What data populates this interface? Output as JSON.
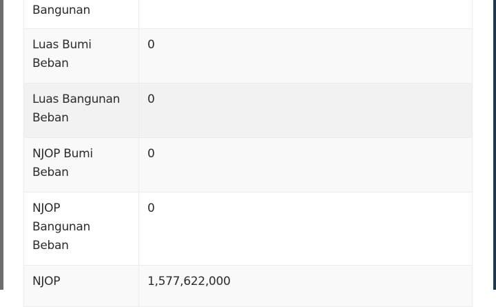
{
  "rows": [
    {
      "label": "Bangunan",
      "value": ""
    },
    {
      "label": "Luas Bumi Beban",
      "value": "0"
    },
    {
      "label": "Luas Bangunan Beban",
      "value": "0"
    },
    {
      "label": "NJOP Bumi Beban",
      "value": "0"
    },
    {
      "label": "NJOP Bangunan Beban",
      "value": "0"
    },
    {
      "label": "NJOP",
      "value": "1,577,622,000"
    }
  ]
}
